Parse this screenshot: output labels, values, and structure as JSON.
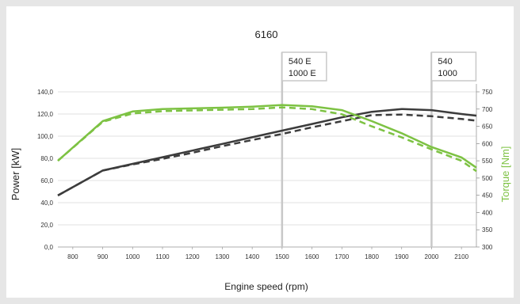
{
  "chart_data": {
    "type": "line",
    "title": "6160",
    "xlabel": "Engine speed (rpm)",
    "ylabel_left": "Power [kW]",
    "ylabel_right": "Torque [Nm]",
    "x": [
      750,
      900,
      1000,
      1100,
      1200,
      1300,
      1400,
      1500,
      1600,
      1700,
      1800,
      1900,
      2000,
      2100,
      2150
    ],
    "xticks": [
      "800",
      "900",
      "1000",
      "1100",
      "1200",
      "1300",
      "1400",
      "1500",
      "1600",
      "1700",
      "1800",
      "1900",
      "2000",
      "2100"
    ],
    "xlim": [
      750,
      2150
    ],
    "ylim_left": [
      0,
      140
    ],
    "yticks_left": [
      "0,0",
      "20,0",
      "40,0",
      "60,0",
      "80,0",
      "100,0",
      "120,0",
      "140,0"
    ],
    "ylim_right": [
      300,
      750
    ],
    "yticks_right": [
      "300",
      "350",
      "400",
      "450",
      "500",
      "550",
      "600",
      "650",
      "700",
      "750"
    ],
    "grid": "horizontal",
    "series": [
      {
        "axis": "left",
        "color": "#3c3c3c",
        "style": "solid",
        "values": [
          46.5,
          69,
          75,
          81,
          87,
          93,
          99,
          105,
          111,
          117,
          122,
          124.5,
          123.5,
          120,
          118.5
        ]
      },
      {
        "axis": "left",
        "color": "#3c3c3c",
        "style": "dashed",
        "values": [
          46.5,
          69,
          74.5,
          79.5,
          85,
          91,
          96.5,
          102,
          108,
          113.5,
          119,
          119.5,
          118,
          115.5,
          114
        ]
      },
      {
        "axis": "right",
        "color": "#7dc243",
        "style": "solid",
        "values": [
          550,
          665,
          693,
          700,
          702,
          704,
          707,
          712,
          708,
          697,
          665,
          630,
          590,
          560,
          530
        ]
      },
      {
        "axis": "right",
        "color": "#7dc243",
        "style": "dashed",
        "values": [
          550,
          663,
          687,
          694,
          696,
          698,
          700,
          705,
          700,
          685,
          650,
          618,
          583,
          550,
          520
        ]
      }
    ],
    "markers": [
      {
        "x": 1500,
        "lines": [
          "540 E",
          "1000 E"
        ]
      },
      {
        "x": 2000,
        "lines": [
          "540",
          "1000"
        ]
      }
    ],
    "colors": {
      "power_axis_label": "#222222",
      "torque_axis_label": "#7dc243",
      "marker_line": "#c8c8c8",
      "grid": "#d9d9d9"
    }
  }
}
